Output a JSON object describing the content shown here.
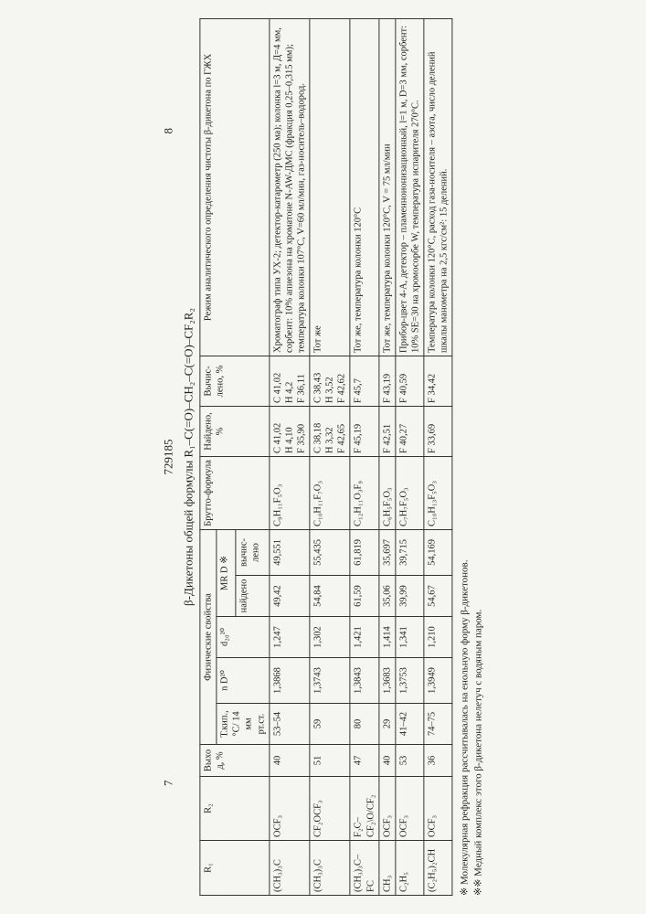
{
  "pageLeft": "7",
  "docNumber": "729185",
  "pageRight": "8",
  "title": "β-Дикетоны общей формулы R₁–C(=O)–CH₂–C(=O)–CF₂R₂",
  "headers": {
    "r1": "R₁",
    "r2": "R₂",
    "yield": "Выход, %",
    "phys": "Физические свойства",
    "tk": "Т.кип., °C/ 14 мм рт.ст.",
    "nd": "n D²⁰",
    "d20": "d₂₀²⁰",
    "mrd": "MR D ※",
    "mrdFound": "найдено",
    "mrdCalc": "вычис­лено",
    "brutto": "Брутто-формула",
    "found": "Найдено, %",
    "calc": "Вычис­лено, %",
    "regime": "Режим аналитического опреде­ления чистоты β-дикетона по ГЖХ"
  },
  "rows": [
    {
      "r1": "(CH₃)₃C",
      "r2": "OCF₃",
      "yield": "40",
      "tk": "53–54",
      "nd": "1,3868",
      "d20": "1,247",
      "mrdF": "49,42",
      "mrdC": "49,551",
      "brutto": "C₉H₁₁F₅O₃",
      "found": "C 41,02\nH 4,10\nF 35,90",
      "calc": "C 41,02\nH 4,2\nF 36,11",
      "regime": "Хроматограф типа УХ-2; детектор-катарометр (250 ма); колонка l=3 м, Д=4 мм, сорбент: 10% апиезона на хроматоне N-AW-ДМС (фракция 0,25–0,315 мм); температу­ра колонки 107°C, V=60 мл/мин, газ-носитель–водород."
    },
    {
      "r1": "(CH₃)₃C",
      "r2": "CF₂OCF₃",
      "yield": "51",
      "tk": "59",
      "nd": "1,3743",
      "d20": "1,302",
      "mrdF": "54,84",
      "mrdC": "55,435",
      "brutto": "C₁₀H₁₁F₇O₃",
      "found": "C 38,18\nH 3,32\nF 42,65",
      "calc": "C 38,43\nH 3,52\nF 42,62",
      "regime": "Тот же"
    },
    {
      "r1": "(CH₃)₃C–FC",
      "r2": "F₂C–CF₂\\O/CF₂",
      "yield": "47",
      "tk": "80",
      "nd": "1,3843",
      "d20": "1,421",
      "mrdF": "61,59",
      "mrdC": "61,819",
      "brutto": "C₁₂H₁₁O₃F₉",
      "found": "F 45,19",
      "calc": "F 45,7",
      "regime": "Тот же, температура колонки 120°C"
    },
    {
      "r1": "CH₃",
      "r2": "OCF₃",
      "yield": "40",
      "tk": "29",
      "nd": "1,3683",
      "d20": "1,414",
      "mrdF": "35,06",
      "mrdC": "35,697",
      "brutto": "C₆H₅F₅O₃",
      "found": "F 42,51",
      "calc": "F 43,19",
      "regime": "Тот же, температура колонки 120°C, V = 75 мл/мин"
    },
    {
      "r1": "C₂H₅",
      "r2": "OCF₃",
      "yield": "53",
      "tk": "41–42",
      "nd": "1,3753",
      "d20": "1,341",
      "mrdF": "39,99",
      "mrdC": "39,715",
      "brutto": "C₇H₇F₅O₃",
      "found": "F 40,27",
      "calc": "F 40,59",
      "regime": "Прибор-цвет 4-А, детектор – пламенноионизационный, l=1 м, D=3 мм, сорбент: 10% SE=30 на хромосорбе W, температу­ра испарителя 270°C."
    },
    {
      "r1": "(C₂H₅)₂CH",
      "r2": "OCF₃",
      "yield": "36",
      "tk": "74–75",
      "nd": "1,3949",
      "d20": "1,210",
      "mrdF": "54,67",
      "mrdC": "54,169",
      "brutto": "C₁₀H₁₃F₅O₃",
      "found": "F 33,69",
      "calc": "F 34,42",
      "regime": "Температура колонки 120°C, расход газа-но­сителя – азота, число деле­ний шкалы манометра на 2,5 кгс/см²: 15 делений."
    }
  ],
  "footnotes": {
    "f1": "※ Молекулярная рефракция рассчитывалась на енольную форму β-дикетонов.",
    "f2": "※※ Медный комплекс этого β-дикетона нелетуч с водяным паром."
  }
}
